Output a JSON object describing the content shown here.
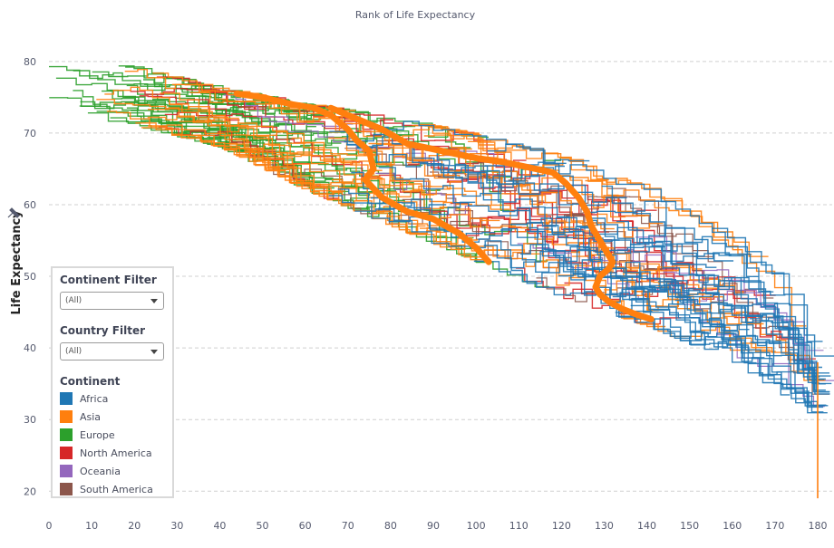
{
  "colors": {
    "Africa": "#1f77b4",
    "Asia": "#ff7f0e",
    "Europe": "#2ca02c",
    "North America": "#d62728",
    "Oceania": "#9467bd",
    "South America": "#8c564b",
    "grid": "#d0d0d0",
    "text": "#555a6e"
  },
  "panel": {
    "continent_filter_title": "Continent Filter",
    "continent_filter_value": "(All)",
    "country_filter_title": "Country Filter",
    "country_filter_value": "(All)",
    "legend_title": "Continent",
    "legend": [
      {
        "name": "Africa",
        "color": "#1f77b4"
      },
      {
        "name": "Asia",
        "color": "#ff7f0e"
      },
      {
        "name": "Europe",
        "color": "#2ca02c"
      },
      {
        "name": "North America",
        "color": "#d62728"
      },
      {
        "name": "Oceania",
        "color": "#9467bd"
      },
      {
        "name": "South America",
        "color": "#8c564b"
      }
    ]
  },
  "pin_icon": "pin-icon",
  "chart_data": {
    "type": "line",
    "title": "Rank of Life Expectancy",
    "xlabel": "",
    "ylabel": "Life Expectancy",
    "xlim": [
      0,
      180
    ],
    "ylim": [
      17,
      82
    ],
    "xticks": [
      0,
      10,
      20,
      30,
      40,
      50,
      60,
      70,
      80,
      90,
      100,
      110,
      120,
      130,
      140,
      150,
      160,
      170,
      180
    ],
    "yticks": [
      20,
      30,
      40,
      50,
      60,
      70,
      80
    ],
    "grid": "horizontal dashed",
    "legend_position": "bottom-left",
    "rank_envelope": {
      "x": [
        0,
        20,
        40,
        60,
        80,
        100,
        120,
        140,
        160,
        170,
        180
      ],
      "upper": [
        81,
        79,
        76,
        74,
        72,
        69.5,
        66.5,
        62,
        55,
        50,
        38
      ],
      "lower": [
        73,
        71,
        68,
        62,
        57,
        52,
        47,
        43,
        38,
        34,
        30
      ]
    },
    "series": [
      {
        "name": "Asia (highlighted)",
        "continent": "Asia",
        "bold": true,
        "x": [
          44,
          50,
          57,
          62,
          66,
          68,
          70,
          72,
          75,
          76,
          74,
          78,
          84,
          90,
          96,
          100,
          103
        ],
        "y": [
          75.5,
          75,
          74,
          73.5,
          72.5,
          71.5,
          70.5,
          69,
          67.5,
          65,
          63.5,
          61,
          59,
          58,
          56,
          54,
          52
        ]
      },
      {
        "name": "Asia (highlighted)",
        "continent": "Asia",
        "bold": true,
        "x": [
          66,
          70,
          74,
          78,
          81,
          84,
          88,
          92,
          96,
          100
        ],
        "y": [
          73.5,
          72.5,
          71.5,
          70.5,
          69.5,
          68.5,
          68,
          67.5,
          67,
          66.5
        ]
      },
      {
        "name": "Asia (highlighted)",
        "continent": "Asia",
        "bold": true,
        "x": [
          100,
          106,
          110,
          114,
          118,
          121,
          124,
          126,
          127,
          128,
          130,
          132,
          131,
          129,
          128,
          129,
          131,
          134,
          137,
          141
        ],
        "y": [
          66.5,
          66,
          65.5,
          65,
          64.5,
          63,
          61,
          59,
          57,
          56,
          54,
          52,
          51,
          50,
          48.5,
          47.5,
          46.5,
          45.5,
          44.8,
          44
        ]
      }
    ]
  }
}
